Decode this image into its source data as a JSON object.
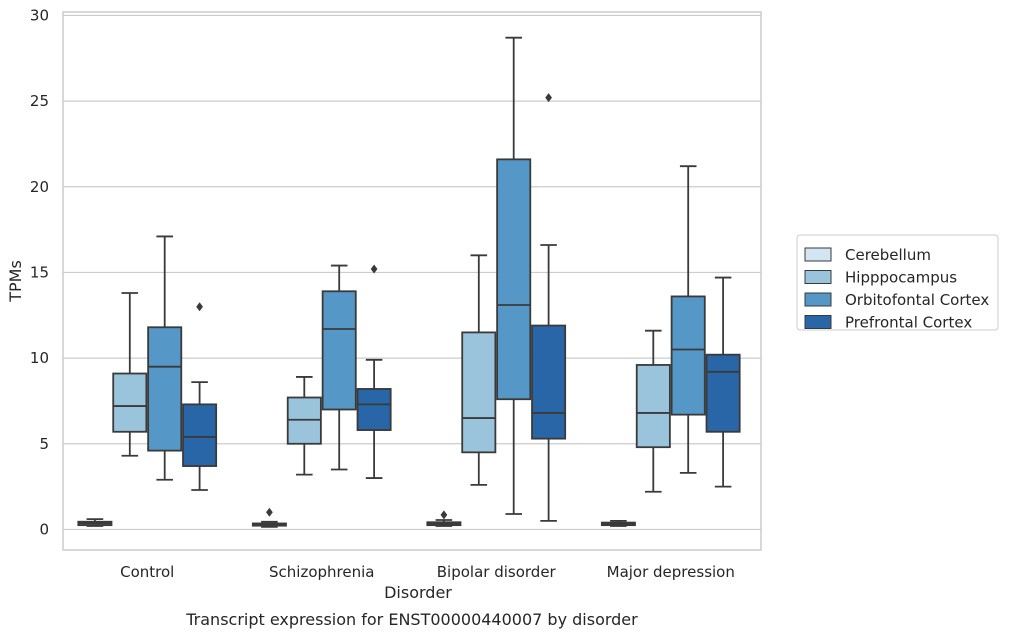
{
  "chart_data": {
    "type": "box",
    "title": "",
    "caption": "Transcript expression for ENST00000440007 by disorder",
    "xlabel": "Disorder",
    "ylabel": "TPMs",
    "ylim": [
      -1.2,
      30.2
    ],
    "yticks": [
      0,
      5,
      10,
      15,
      20,
      25,
      30
    ],
    "grid": "horizontal",
    "legend_position": "right",
    "categories": [
      "Control",
      "Schizophrenia",
      "Bipolar disorder",
      "Major depression"
    ],
    "series": [
      {
        "name": "Cerebellum",
        "color": "#d3e4f3",
        "boxes": [
          {
            "whislo": 0.2,
            "q1": 0.25,
            "med": 0.35,
            "q3": 0.45,
            "whishi": 0.6,
            "fliers": []
          },
          {
            "whislo": 0.15,
            "q1": 0.22,
            "med": 0.28,
            "q3": 0.35,
            "whishi": 0.45,
            "fliers": [
              1.0
            ]
          },
          {
            "whislo": 0.2,
            "q1": 0.25,
            "med": 0.32,
            "q3": 0.42,
            "whishi": 0.55,
            "fliers": [
              0.85
            ]
          },
          {
            "whislo": 0.2,
            "q1": 0.25,
            "med": 0.32,
            "q3": 0.4,
            "whishi": 0.5,
            "fliers": []
          }
        ]
      },
      {
        "name": "Hipppocampus",
        "color": "#9ac3dc",
        "boxes": [
          {
            "whislo": 4.3,
            "q1": 5.7,
            "med": 7.2,
            "q3": 9.1,
            "whishi": 13.8,
            "fliers": []
          },
          {
            "whislo": 3.2,
            "q1": 5.0,
            "med": 6.4,
            "q3": 7.7,
            "whishi": 8.9,
            "fliers": []
          },
          {
            "whislo": 2.6,
            "q1": 4.5,
            "med": 6.5,
            "q3": 11.5,
            "whishi": 16.0,
            "fliers": []
          },
          {
            "whislo": 2.2,
            "q1": 4.8,
            "med": 6.8,
            "q3": 9.6,
            "whishi": 11.6,
            "fliers": []
          }
        ]
      },
      {
        "name": "Orbitofontal Cortex",
        "color": "#5597c6",
        "boxes": [
          {
            "whislo": 2.9,
            "q1": 4.6,
            "med": 9.5,
            "q3": 11.8,
            "whishi": 17.1,
            "fliers": []
          },
          {
            "whislo": 3.5,
            "q1": 7.0,
            "med": 11.7,
            "q3": 13.9,
            "whishi": 15.4,
            "fliers": []
          },
          {
            "whislo": 0.9,
            "q1": 7.6,
            "med": 13.1,
            "q3": 21.6,
            "whishi": 28.7,
            "fliers": []
          },
          {
            "whislo": 3.3,
            "q1": 6.7,
            "med": 10.5,
            "q3": 13.6,
            "whishi": 21.2,
            "fliers": []
          }
        ]
      },
      {
        "name": "Prefrontal Cortex",
        "color": "#2866a7",
        "boxes": [
          {
            "whislo": 2.3,
            "q1": 3.7,
            "med": 5.4,
            "q3": 7.3,
            "whishi": 8.6,
            "fliers": [
              13.0
            ]
          },
          {
            "whislo": 3.0,
            "q1": 5.8,
            "med": 7.3,
            "q3": 8.2,
            "whishi": 9.9,
            "fliers": [
              15.2
            ]
          },
          {
            "whislo": 0.5,
            "q1": 5.3,
            "med": 6.8,
            "q3": 11.9,
            "whishi": 16.6,
            "fliers": [
              25.2
            ]
          },
          {
            "whislo": 2.5,
            "q1": 5.7,
            "med": 9.2,
            "q3": 10.2,
            "whishi": 14.7,
            "fliers": []
          }
        ]
      }
    ]
  }
}
